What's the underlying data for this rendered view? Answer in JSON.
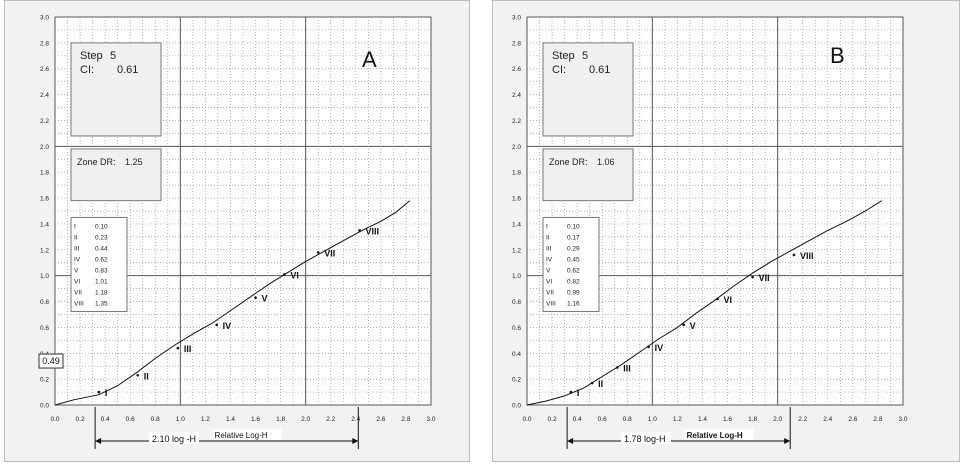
{
  "chart_data": [
    {
      "type": "line",
      "panel_label": "A",
      "xlabel": "Relative Log-H",
      "ylabel": "",
      "xlim": [
        0,
        3.0
      ],
      "ylim": [
        0,
        3.0
      ],
      "grid": true,
      "x_ticks": [
        "0.0",
        "0.2",
        "0.4",
        "0.6",
        "0.8",
        "1.0",
        "1.2",
        "1.4",
        "1.6",
        "1.8",
        "2.0",
        "2.2",
        "2.4",
        "2.6",
        "2.8",
        "3.0"
      ],
      "y_ticks": [
        "0.0",
        "0.2",
        "0.4",
        "0.6",
        "0.8",
        "1.0",
        "1.2",
        "1.4",
        "1.6",
        "1.8",
        "2.0",
        "2.2",
        "2.4",
        "2.6",
        "2.8",
        "3.0"
      ],
      "series": [
        {
          "x": [
            0.0,
            0.15,
            0.35,
            0.5,
            0.65,
            0.8,
            0.95,
            1.1,
            1.25,
            1.4,
            1.55,
            1.7,
            1.85,
            2.0,
            2.15,
            2.3,
            2.45,
            2.6,
            2.72,
            2.83
          ],
          "y": [
            0.0,
            0.04,
            0.08,
            0.15,
            0.25,
            0.36,
            0.46,
            0.55,
            0.63,
            0.73,
            0.83,
            0.93,
            1.02,
            1.11,
            1.19,
            1.27,
            1.35,
            1.42,
            1.49,
            1.58
          ]
        }
      ],
      "step_box": {
        "step_label": "Step",
        "step_value": "5",
        "ci_label": "CI:",
        "ci_value": "0.61"
      },
      "zone_dr": {
        "label": "Zone DR:",
        "value": "1.25"
      },
      "zones": [
        {
          "name": "I",
          "value": "0.10",
          "x": 0.35,
          "y": 0.1
        },
        {
          "name": "II",
          "value": "0.23",
          "x": 0.66,
          "y": 0.23
        },
        {
          "name": "III",
          "value": "0.44",
          "x": 0.98,
          "y": 0.44
        },
        {
          "name": "IV",
          "value": "0.62",
          "x": 1.29,
          "y": 0.62
        },
        {
          "name": "V",
          "value": "0.83",
          "x": 1.6,
          "y": 0.83
        },
        {
          "name": "VI",
          "value": "1.01",
          "x": 1.83,
          "y": 1.01
        },
        {
          "name": "VII",
          "value": "1.18",
          "x": 2.1,
          "y": 1.18
        },
        {
          "name": "VIII",
          "value": "1.35",
          "x": 2.43,
          "y": 1.35
        }
      ],
      "range_label": "2.10 log -H",
      "range": [
        0.32,
        2.42
      ],
      "cursor_value": "0.49",
      "cursor_y": 0.34
    },
    {
      "type": "line",
      "panel_label": "B",
      "xlabel": "Relative Log-H",
      "ylabel": "",
      "xlim": [
        0,
        3.0
      ],
      "ylim": [
        0,
        3.0
      ],
      "grid": true,
      "x_ticks": [
        "0.0",
        "0.2",
        "0.4",
        "0.6",
        "0.8",
        "1.0",
        "1.2",
        "1.4",
        "1.6",
        "1.8",
        "2.0",
        "2.2",
        "2.4",
        "2.6",
        "2.8",
        "3.0"
      ],
      "y_ticks": [
        "0.0",
        "0.2",
        "0.4",
        "0.6",
        "0.8",
        "1.0",
        "1.2",
        "1.4",
        "1.6",
        "1.8",
        "2.0",
        "2.2",
        "2.4",
        "2.6",
        "2.8",
        "3.0"
      ],
      "series": [
        {
          "x": [
            0.0,
            0.15,
            0.3,
            0.45,
            0.6,
            0.75,
            0.9,
            1.05,
            1.2,
            1.35,
            1.5,
            1.65,
            1.8,
            1.95,
            2.1,
            2.25,
            2.4,
            2.55,
            2.7,
            2.83
          ],
          "y": [
            0.0,
            0.03,
            0.07,
            0.13,
            0.22,
            0.31,
            0.41,
            0.51,
            0.6,
            0.71,
            0.81,
            0.92,
            1.02,
            1.11,
            1.19,
            1.27,
            1.35,
            1.42,
            1.5,
            1.58
          ]
        }
      ],
      "step_box": {
        "step_label": "Step",
        "step_value": "5",
        "ci_label": "CI:",
        "ci_value": "0.61"
      },
      "zone_dr": {
        "label": "Zone DR:",
        "value": "1.06"
      },
      "zones": [
        {
          "name": "I",
          "value": "0.10",
          "x": 0.35,
          "y": 0.1
        },
        {
          "name": "II",
          "value": "0.17",
          "x": 0.52,
          "y": 0.17
        },
        {
          "name": "III",
          "value": "0.29",
          "x": 0.72,
          "y": 0.29
        },
        {
          "name": "IV",
          "value": "0.45",
          "x": 0.97,
          "y": 0.45
        },
        {
          "name": "V",
          "value": "0.62",
          "x": 1.25,
          "y": 0.62
        },
        {
          "name": "VI",
          "value": "0.82",
          "x": 1.52,
          "y": 0.82
        },
        {
          "name": "VII",
          "value": "0.99",
          "x": 1.8,
          "y": 0.99
        },
        {
          "name": "VIII",
          "value": "1.16",
          "x": 2.13,
          "y": 1.16
        }
      ],
      "range_label": "1.78 log-H",
      "range": [
        0.32,
        2.1
      ]
    }
  ]
}
